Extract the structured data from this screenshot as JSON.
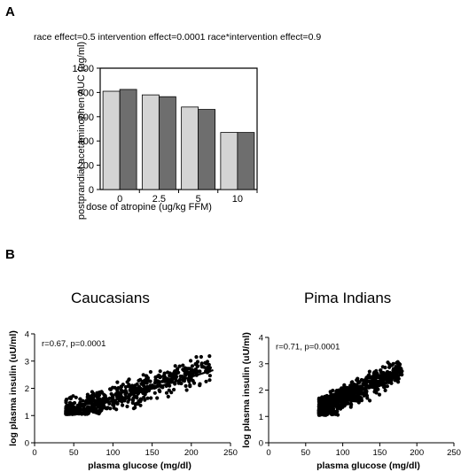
{
  "panel_a_letter": "A",
  "panel_b_letter": "B",
  "chart_data": [
    {
      "type": "bar",
      "annotation": "race effect=0.5  intervention effect=0.0001  race*intervention effect=0.9",
      "categories": [
        "0",
        "2.5",
        "5",
        "10"
      ],
      "series": [
        {
          "values": [
            810,
            780,
            680,
            470
          ],
          "color": "#d4d4d4"
        },
        {
          "values": [
            825,
            765,
            660,
            470
          ],
          "color": "#6e6e6e"
        }
      ],
      "xlabel": "dose of atropine (ug/kg FFM)",
      "ylabel": "postprandial acetaminophen AUC (ug/ml)",
      "ylim": [
        0,
        1000
      ],
      "yticks": [
        0,
        200,
        400,
        600,
        800,
        1000
      ]
    },
    {
      "type": "scatter",
      "title": "Caucasians",
      "annotation": "r=0.67, p=0.0001",
      "xlabel": "plasma glucose (mg/dl)",
      "ylabel": "log plasma insulin (uU/ml)",
      "xlim": [
        0,
        250
      ],
      "ylim": [
        0,
        4
      ],
      "xticks": [
        0,
        50,
        100,
        150,
        200,
        250
      ],
      "yticks": [
        0,
        1,
        2,
        3,
        4
      ],
      "trend": {
        "x": [
          45,
          228
        ],
        "y": [
          1.07,
          2.67
        ]
      },
      "cloud": {
        "x_range": [
          40,
          225
        ],
        "y_floor": 1.05,
        "intercept": 0.65,
        "slope": 0.0095,
        "spread": 0.32,
        "count": 650,
        "seed": 7
      }
    },
    {
      "type": "scatter",
      "title": "Pima Indians",
      "annotation": "r=0.71, p=0.0001",
      "xlabel": "plasma glucose (mg/dl)",
      "ylabel": "log plasma insulin (uU/ml)",
      "xlim": [
        0,
        250
      ],
      "ylim": [
        0,
        4
      ],
      "xticks": [
        0,
        50,
        100,
        150,
        200,
        250
      ],
      "yticks": [
        0,
        1,
        2,
        3,
        4
      ],
      "trend": {
        "x": [
          68,
          182
        ],
        "y": [
          1.2,
          2.75
        ]
      },
      "cloud": {
        "x_range": [
          68,
          180
        ],
        "y_floor": 1.05,
        "intercept": 0.25,
        "slope": 0.0142,
        "spread": 0.3,
        "count": 750,
        "seed": 13
      }
    }
  ]
}
